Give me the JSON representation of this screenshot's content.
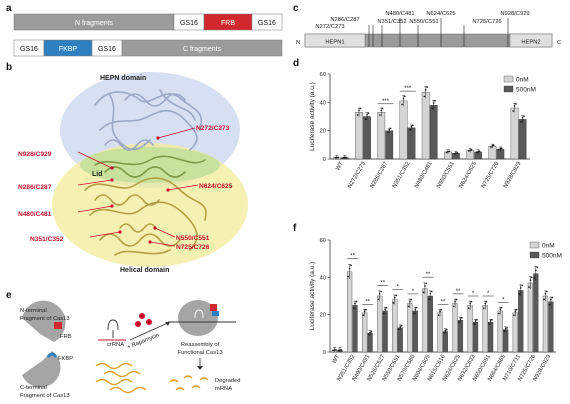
{
  "panel_a": {
    "letter": "a",
    "construct1": [
      "N fragments",
      "GS16",
      "FRB",
      "GS16"
    ],
    "construct2": [
      "GS16",
      "FKBP",
      "GS16",
      "C fragments"
    ]
  },
  "panel_b": {
    "letter": "b",
    "hepn_label": "HEPN domain",
    "helical_label": "Helical domain",
    "lid_label": "Lid",
    "split_sites": [
      "N928/C929",
      "N272/C273",
      "N286/C287",
      "N624/C625",
      "N480/C481",
      "N351/C352",
      "N550/C551",
      "N725/C726"
    ]
  },
  "panel_c": {
    "letter": "c",
    "n_term": "N",
    "c_term": "C",
    "hepn1": "HEPN1",
    "hepn2": "HEPN2",
    "sites_top": [
      "N480/C481",
      "N624/C625",
      "N928/C929"
    ],
    "sites_upper": [
      "N286/C287",
      "N351/C352",
      "N550/C551",
      "N725/C726"
    ],
    "sites_lower": [
      "N272/C273"
    ]
  },
  "panel_e": {
    "letter": "e",
    "n_frag_label": "N-terminal\nFragment of Cas13",
    "c_frag_label": "C-terminal\nFragment of Cas13",
    "frb": "FRB",
    "fkbp": "FKBP",
    "crrna": "crRNA",
    "rapamycin": "+ Rapamycin",
    "reassembly": "Reassembly of\nFunctional Cas13",
    "degraded": "Degraded\nmRNA"
  },
  "panel_d": {
    "letter": "d",
    "legend": [
      "0nM",
      "500nM"
    ]
  },
  "panel_f": {
    "letter": "f",
    "legend": [
      "0nM",
      "500nM"
    ]
  },
  "colors": {
    "light_bar": "#d4d4d4",
    "dark_bar": "#595959",
    "frb_red": "#d0282e",
    "fkbp_blue": "#2f7fc1",
    "gray_block": "#9b9b9b",
    "split_red": "#c8102e"
  },
  "chart_data": [
    {
      "type": "bar",
      "panel": "d",
      "ylabel": "Luciferase activity (a.u.)",
      "ylim": [
        0,
        60
      ],
      "yticks": [
        0,
        20,
        40,
        60
      ],
      "categories": [
        "WT",
        "N272/C273",
        "N286/C287",
        "N351/C352",
        "N480/C481",
        "N550/C551",
        "N624/C625",
        "N725/C726",
        "N928/C929"
      ],
      "series": [
        {
          "name": "0nM",
          "values": [
            1,
            33,
            33,
            41,
            47,
            5,
            6,
            9,
            36
          ]
        },
        {
          "name": "500nM",
          "values": [
            1,
            30,
            20,
            22,
            38,
            4,
            5,
            7,
            28
          ]
        }
      ],
      "significance": [
        {
          "category": "N286/C287",
          "label": "***"
        },
        {
          "category": "N351/C352",
          "label": "***"
        }
      ],
      "legend_position": "top-right",
      "grid": false
    },
    {
      "type": "bar",
      "panel": "f",
      "ylabel": "Luciferase activity (a.u.)",
      "ylim": [
        0,
        60
      ],
      "yticks": [
        0,
        20,
        40,
        60
      ],
      "categories": [
        "WT",
        "N351/C352",
        "N490/C491",
        "N526/C527",
        "N550/C551",
        "N579/C580",
        "N604/C605",
        "N615/C616",
        "N624/C625",
        "N632/C633",
        "N650/C651",
        "N664/C665",
        "N710/C711",
        "N725/C726",
        "N928/C929"
      ],
      "series": [
        {
          "name": "0nM",
          "values": [
            1,
            43,
            21,
            30,
            28,
            26,
            34,
            21,
            26,
            25,
            25,
            22,
            21,
            37,
            30
          ]
        },
        {
          "name": "500nM",
          "values": [
            1,
            25,
            10,
            22,
            13,
            22,
            30,
            11,
            17,
            16,
            16,
            12,
            33,
            42,
            27
          ]
        }
      ],
      "significance": [
        {
          "category": "N351/C352",
          "label": "**"
        },
        {
          "category": "N490/C491",
          "label": "**"
        },
        {
          "category": "N526/C527",
          "label": "**"
        },
        {
          "category": "N550/C551",
          "label": "*"
        },
        {
          "category": "N579/C580",
          "label": "*"
        },
        {
          "category": "N604/C605",
          "label": "**"
        },
        {
          "category": "N615/C616",
          "label": "**"
        },
        {
          "category": "N624/C625",
          "label": "**"
        },
        {
          "category": "N632/C633",
          "label": "*"
        },
        {
          "category": "N650/C651",
          "label": "*"
        },
        {
          "category": "N664/C665",
          "label": "*"
        }
      ],
      "legend_position": "top-right",
      "grid": false
    }
  ]
}
